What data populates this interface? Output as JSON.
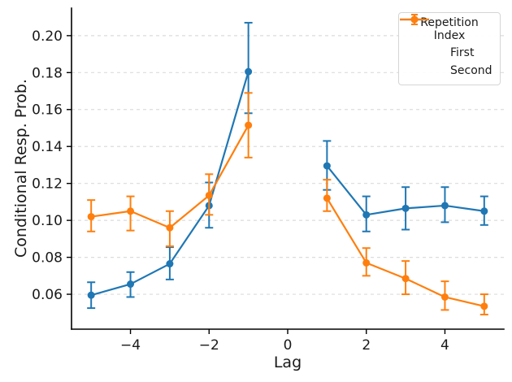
{
  "chart_data": {
    "type": "line",
    "title": "",
    "xlabel": "Lag",
    "ylabel": "Conditional Resp. Prob.",
    "x": [
      -5,
      -4,
      -3,
      -2,
      -1,
      1,
      2,
      3,
      4,
      5
    ],
    "gap_between": [
      -1,
      1
    ],
    "series": [
      {
        "name": "First",
        "color": "#1f77b4",
        "values": [
          0.0595,
          0.0655,
          0.0765,
          0.108,
          0.1805,
          0.1295,
          0.103,
          0.1065,
          0.108,
          0.105
        ],
        "ci_lower": [
          0.0525,
          0.0585,
          0.068,
          0.096,
          0.158,
          0.1165,
          0.094,
          0.095,
          0.099,
          0.0975
        ],
        "ci_upper": [
          0.0665,
          0.072,
          0.0855,
          0.1205,
          0.207,
          0.143,
          0.113,
          0.118,
          0.118,
          0.113
        ]
      },
      {
        "name": "Second",
        "color": "#ff7f0e",
        "values": [
          0.102,
          0.105,
          0.096,
          0.1135,
          0.1515,
          0.112,
          0.077,
          0.0685,
          0.0585,
          0.0535
        ],
        "ci_lower": [
          0.094,
          0.0945,
          0.086,
          0.103,
          0.134,
          0.105,
          0.07,
          0.06,
          0.0515,
          0.049
        ],
        "ci_upper": [
          0.111,
          0.113,
          0.105,
          0.125,
          0.169,
          0.122,
          0.085,
          0.078,
          0.067,
          0.06
        ]
      }
    ],
    "legend": {
      "title": "Repetition Index",
      "position": "upper right"
    },
    "xticks": [
      -4,
      -2,
      0,
      2,
      4
    ],
    "xtick_labels": [
      "−4",
      "−2",
      "0",
      "2",
      "4"
    ],
    "yticks": [
      0.06,
      0.08,
      0.1,
      0.12,
      0.14,
      0.16,
      0.18,
      0.2
    ],
    "ytick_labels": [
      "0.06",
      "0.08",
      "0.10",
      "0.12",
      "0.14",
      "0.16",
      "0.18",
      "0.20"
    ],
    "xlim": [
      -5.5,
      5.5
    ],
    "ylim": [
      0.0411,
      0.2149
    ],
    "grid": "horizontal dashed",
    "style": {
      "grid_color": "#dcdcdc",
      "spine_color": "#000000",
      "text_color": "#1a1a1a",
      "background": "#ffffff"
    }
  }
}
